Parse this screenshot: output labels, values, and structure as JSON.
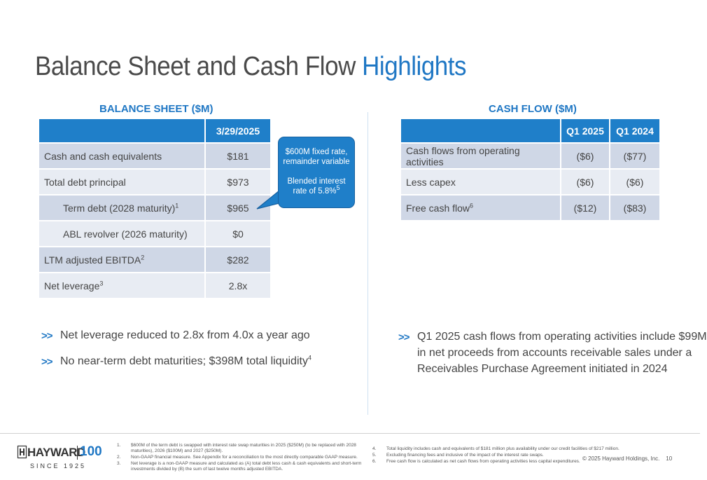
{
  "title": {
    "main": "Balance Sheet and Cash Flow ",
    "highlight": "Highlights"
  },
  "balance_sheet": {
    "heading": "BALANCE SHEET ($M)",
    "col_header": "3/29/2025",
    "rows": [
      {
        "label": "Cash and cash equivalents",
        "sup": "",
        "value": "$181"
      },
      {
        "label": "Total debt principal",
        "sup": "",
        "value": "$973"
      },
      {
        "label": "Term debt (2028 maturity)",
        "sup": "1",
        "value": "$965"
      },
      {
        "label": "ABL revolver (2026 maturity)",
        "sup": "",
        "value": "$0"
      },
      {
        "label": "LTM adjusted EBITDA",
        "sup": "2",
        "value": "$282"
      },
      {
        "label": "Net leverage",
        "sup": "3",
        "value": "2.8x"
      }
    ]
  },
  "callout": {
    "line1": "$600M fixed rate,",
    "line2": "remainder variable",
    "line3": "Blended interest",
    "line4": "rate of 5.8%",
    "sup": "5"
  },
  "cash_flow": {
    "heading": "CASH FLOW ($M)",
    "col1": "Q1 2025",
    "col2": "Q1 2024",
    "rows": [
      {
        "label": "Cash flows from operating activities",
        "sup": "",
        "v1": "($6)",
        "v2": "($77)"
      },
      {
        "label": "Less capex",
        "sup": "",
        "v1": "($6)",
        "v2": "($6)"
      },
      {
        "label": "Free cash flow",
        "sup": "6",
        "v1": "($12)",
        "v2": "($83)"
      }
    ]
  },
  "bullets_left": [
    {
      "arrow": ">>",
      "text": "Net leverage reduced to 2.8x from 4.0x a year ago",
      "sup": ""
    },
    {
      "arrow": ">>",
      "text": "No near-term debt maturities; $398M total liquidity",
      "sup": "4"
    }
  ],
  "bullet_right": {
    "arrow": ">>",
    "line1": "Q1 2025 cash flows from operating activities include $99M",
    "line2": "in net proceeds from accounts receivable sales under a",
    "line3": "Receivables Purchase Agreement initiated in 2024"
  },
  "logo": {
    "word": "HAYWARD",
    "anniversary": "100",
    "since": "SINCE 1925"
  },
  "footnotes": [
    {
      "n": "1.",
      "lines": [
        "$600M of the term debt is swapped with interest rate swap maturities in 2025 ($250M) (to be replaced with 2028",
        "maturities), 2026 ($100M) and 2027 ($250M)."
      ]
    },
    {
      "n": "2.",
      "lines": [
        "Non-GAAP financial measure. See Appendix for a reconciliation to the most directly comparable GAAP measure."
      ]
    },
    {
      "n": "3.",
      "lines": [
        "Net leverage is a non-GAAP measure and calculated as (A) total debt less cash & cash equivalents and short-term",
        "investments divided by (B) the sum of last twelve months adjusted EBITDA."
      ]
    },
    {
      "n": "4.",
      "lines": [
        "Total liquidity includes cash and equivalents of $181 million plus availability under our credit facilities of $217 million."
      ]
    },
    {
      "n": "5.",
      "lines": [
        "Excluding financing fees and inclusive of the impact of the interest rate swaps."
      ]
    },
    {
      "n": "6.",
      "lines": [
        "Free cash flow is calculated as net cash flows from operating activities less capital expenditures."
      ]
    }
  ],
  "copyright": "© 2025 Hayward Holdings, Inc.",
  "page_number": "10",
  "colors": {
    "accent": "#1f77c4",
    "header_fill": "#1f7fc9",
    "row_dark": "#cfd7e6",
    "row_light": "#e8ecf3"
  }
}
